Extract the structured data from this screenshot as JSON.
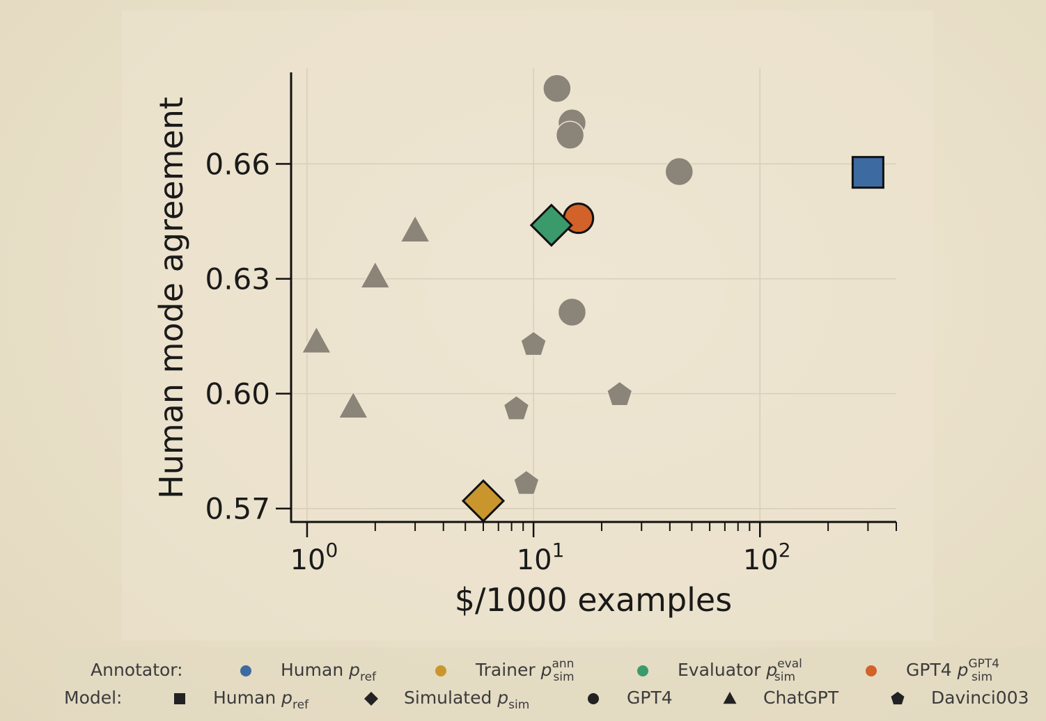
{
  "chart_data": {
    "type": "scatter",
    "xlabel": "$/1000 examples",
    "ylabel": "Human mode agreement",
    "xscale": "log",
    "xlim": [
      0.85,
      400
    ],
    "ylim": [
      0.5665,
      0.685
    ],
    "yticks": [
      "0.57",
      "0.60",
      "0.63",
      "0.66"
    ],
    "ytick_values": [
      0.57,
      0.6,
      0.63,
      0.66
    ],
    "xticks": [
      {
        "base": "10",
        "exp": "0",
        "value": 1
      },
      {
        "base": "10",
        "exp": "1",
        "value": 10
      },
      {
        "base": "10",
        "exp": "2",
        "value": 100
      }
    ],
    "grid": true,
    "colors": {
      "human": "#3d6aa0",
      "trainer": "#c9962e",
      "evaluator": "#3b9a6b",
      "gpt4": "#d2622a",
      "neutral": "#8a8479"
    },
    "points": [
      {
        "model": "GPT4",
        "annotator": null,
        "x": 12.7,
        "y": 0.6797
      },
      {
        "model": "GPT4",
        "annotator": null,
        "x": 14.8,
        "y": 0.6707
      },
      {
        "model": "GPT4",
        "annotator": null,
        "x": 14.5,
        "y": 0.6675
      },
      {
        "model": "GPT4",
        "annotator": null,
        "x": 44,
        "y": 0.658
      },
      {
        "model": "GPT4",
        "annotator": null,
        "x": 14.8,
        "y": 0.6213
      },
      {
        "model": "GPT4",
        "annotator": "GPT4",
        "x": 15.8,
        "y": 0.6458
      },
      {
        "model": "Simulated",
        "annotator": "Evaluator",
        "x": 12,
        "y": 0.644
      },
      {
        "model": "Simulated",
        "annotator": "Trainer",
        "x": 6,
        "y": 0.572
      },
      {
        "model": "Human",
        "annotator": "Human",
        "x": 300,
        "y": 0.6578
      },
      {
        "model": "ChatGPT",
        "annotator": null,
        "x": 3,
        "y": 0.6425
      },
      {
        "model": "ChatGPT",
        "annotator": null,
        "x": 2,
        "y": 0.6305
      },
      {
        "model": "ChatGPT",
        "annotator": null,
        "x": 1.1,
        "y": 0.6135
      },
      {
        "model": "ChatGPT",
        "annotator": null,
        "x": 1.6,
        "y": 0.5965
      },
      {
        "model": "Davinci003",
        "annotator": null,
        "x": 10,
        "y": 0.6128
      },
      {
        "model": "Davinci003",
        "annotator": null,
        "x": 24,
        "y": 0.5997
      },
      {
        "model": "Davinci003",
        "annotator": null,
        "x": 8.4,
        "y": 0.596
      },
      {
        "model": "Davinci003",
        "annotator": null,
        "x": 9.3,
        "y": 0.5765
      }
    ]
  },
  "legend": {
    "annotator_title": "Annotator:",
    "model_title": "Model:",
    "annotators": [
      {
        "name": "Human",
        "sym": "p",
        "sub": "ref",
        "sup": "",
        "color": "#3d6aa0"
      },
      {
        "name": "Trainer",
        "sym": "p",
        "sub": "sim",
        "sup": "ann",
        "color": "#c9962e"
      },
      {
        "name": "Evaluator",
        "sym": "p",
        "sub": "sim",
        "sup": "eval",
        "color": "#3b9a6b"
      },
      {
        "name": "GPT4",
        "sym": "p",
        "sub": "sim",
        "sup": "GPT4",
        "color": "#d2622a"
      }
    ],
    "models": [
      {
        "name": "Human",
        "sym": "p",
        "sub": "ref",
        "marker": "square"
      },
      {
        "name": "Simulated",
        "sym": "p",
        "sub": "sim",
        "marker": "diamond"
      },
      {
        "name": "GPT4",
        "sym": "",
        "sub": "",
        "marker": "circle"
      },
      {
        "name": "ChatGPT",
        "sym": "",
        "sub": "",
        "marker": "triangle"
      },
      {
        "name": "Davinci003",
        "sym": "",
        "sub": "",
        "marker": "pentagon"
      }
    ]
  }
}
